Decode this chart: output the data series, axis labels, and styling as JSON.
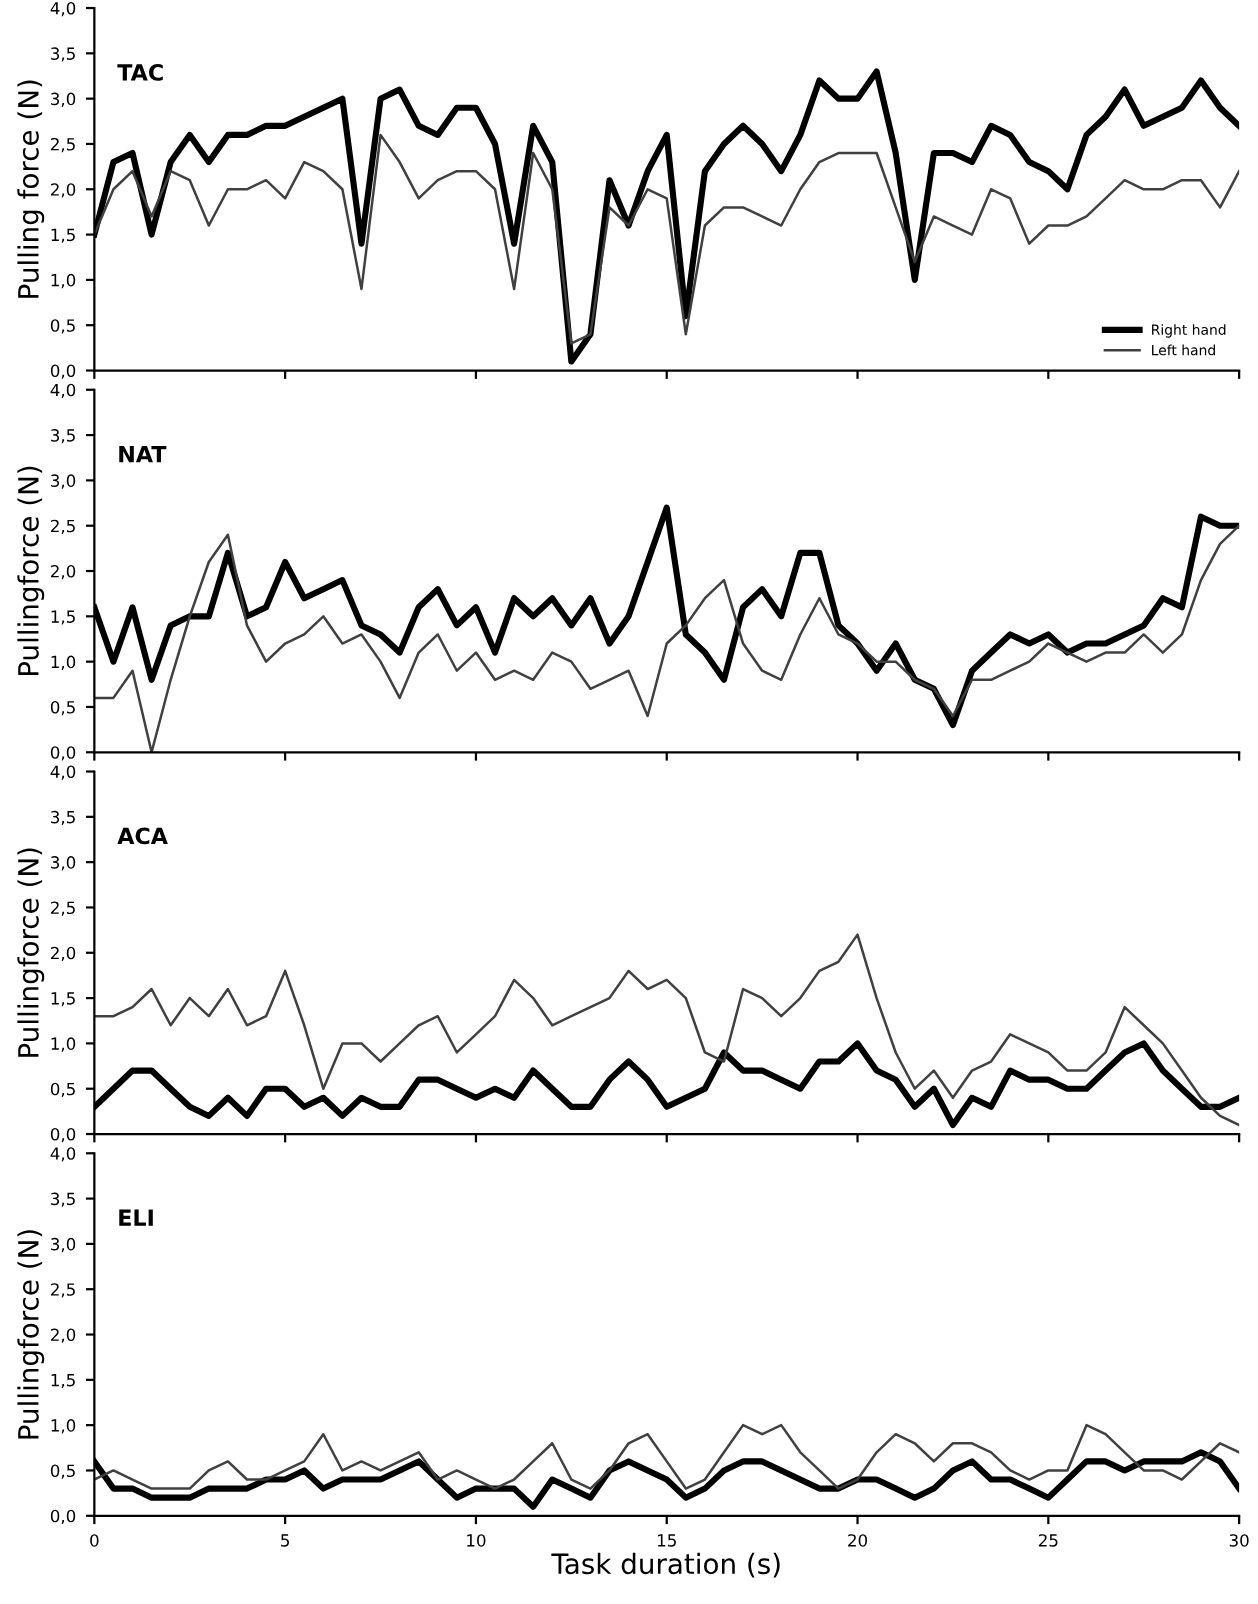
{
  "chart_data": [
    {
      "type": "line",
      "title": "TAC",
      "ylabel": "Pulling force (N)",
      "xlim": [
        0,
        30
      ],
      "xticks": [
        0,
        5,
        10,
        15,
        20,
        25,
        30
      ],
      "ylim": [
        0,
        4
      ],
      "yticks": [
        {
          "value": 0,
          "label": "0,0"
        },
        {
          "value": 0.5,
          "label": "0,5"
        },
        {
          "value": 1,
          "label": "1,0"
        },
        {
          "value": 1.5,
          "label": "1,5"
        },
        {
          "value": 2,
          "label": "2,0"
        },
        {
          "value": 2.5,
          "label": "2,5"
        },
        {
          "value": 3,
          "label": "3,0"
        },
        {
          "value": 3.5,
          "label": "3,5"
        },
        {
          "value": 4,
          "label": "4,0"
        }
      ],
      "tick_labels": "y",
      "legend": "bottom right",
      "grid": false,
      "x": [
        0,
        0.5,
        1,
        1.5,
        2,
        2.5,
        3,
        3.5,
        4,
        4.5,
        5,
        5.5,
        6,
        6.5,
        7,
        7.5,
        8,
        8.5,
        9,
        9.5,
        10,
        10.5,
        11,
        11.5,
        12,
        12.5,
        13,
        13.5,
        14,
        14.5,
        15,
        15.5,
        16,
        16.5,
        17,
        17.5,
        18,
        18.5,
        19,
        19.5,
        20,
        20.5,
        21,
        21.5,
        22,
        22.5,
        23,
        23.5,
        24,
        24.5,
        25,
        25.5,
        26,
        26.5,
        27,
        27.5,
        28,
        28.5,
        29,
        29.5,
        30
      ],
      "series": [
        {
          "name": "Right hand",
          "color": "#000000",
          "values": [
            1.5,
            2.3,
            2.4,
            1.5,
            2.3,
            2.6,
            2.3,
            2.6,
            2.6,
            2.7,
            2.7,
            2.8,
            2.9,
            3.0,
            1.4,
            3.0,
            3.1,
            2.7,
            2.6,
            2.9,
            2.9,
            2.5,
            1.4,
            2.7,
            2.3,
            0.1,
            0.4,
            2.1,
            1.6,
            2.2,
            2.6,
            0.6,
            2.2,
            2.5,
            2.7,
            2.5,
            2.2,
            2.6,
            3.2,
            3.0,
            3.0,
            3.3,
            2.4,
            1.0,
            2.4,
            2.4,
            2.3,
            2.7,
            2.6,
            2.3,
            2.2,
            2.0,
            2.6,
            2.8,
            3.1,
            2.7,
            2.8,
            2.9,
            3.2,
            2.9,
            2.7
          ]
        },
        {
          "name": "Left hand",
          "color": "#404040",
          "values": [
            1.5,
            2.0,
            2.2,
            1.7,
            2.2,
            2.1,
            1.6,
            2.0,
            2.0,
            2.1,
            1.9,
            2.3,
            2.2,
            2.0,
            0.9,
            2.6,
            2.3,
            1.9,
            2.1,
            2.2,
            2.2,
            2.0,
            0.9,
            2.4,
            2.0,
            0.3,
            0.4,
            1.8,
            1.6,
            2.0,
            1.9,
            0.4,
            1.6,
            1.8,
            1.8,
            1.7,
            1.6,
            2.0,
            2.3,
            2.4,
            2.4,
            2.4,
            1.8,
            1.2,
            1.7,
            1.6,
            1.5,
            2.0,
            1.9,
            1.4,
            1.6,
            1.6,
            1.7,
            1.9,
            2.1,
            2.0,
            2.0,
            2.1,
            2.1,
            1.8,
            2.2
          ]
        }
      ]
    },
    {
      "type": "line",
      "title": "NAT",
      "ylabel": "Pullingforce (N)",
      "xlim": [
        0,
        30
      ],
      "xticks": [
        0,
        5,
        10,
        15,
        20,
        25,
        30
      ],
      "ylim": [
        0,
        4
      ],
      "yticks": [
        {
          "value": 0,
          "label": "0,0"
        },
        {
          "value": 0.5,
          "label": "0,5"
        },
        {
          "value": 1,
          "label": "1,0"
        },
        {
          "value": 1.5,
          "label": "1,5"
        },
        {
          "value": 2,
          "label": "2,0"
        },
        {
          "value": 2.5,
          "label": "2,5"
        },
        {
          "value": 3,
          "label": "3,0"
        },
        {
          "value": 3.5,
          "label": "3,5"
        },
        {
          "value": 4,
          "label": "4,0"
        }
      ],
      "tick_labels": "y",
      "grid": false,
      "x": [
        0,
        0.5,
        1,
        1.5,
        2,
        2.5,
        3,
        3.5,
        4,
        4.5,
        5,
        5.5,
        6,
        6.5,
        7,
        7.5,
        8,
        8.5,
        9,
        9.5,
        10,
        10.5,
        11,
        11.5,
        12,
        12.5,
        13,
        13.5,
        14,
        14.5,
        15,
        15.5,
        16,
        16.5,
        17,
        17.5,
        18,
        18.5,
        19,
        19.5,
        20,
        20.5,
        21,
        21.5,
        22,
        22.5,
        23,
        23.5,
        24,
        24.5,
        25,
        25.5,
        26,
        26.5,
        27,
        27.5,
        28,
        28.5,
        29,
        29.5,
        30
      ],
      "series": [
        {
          "color": "#000000",
          "values": [
            1.6,
            1.0,
            1.6,
            0.8,
            1.4,
            1.5,
            1.5,
            2.2,
            1.5,
            1.6,
            2.1,
            1.7,
            1.8,
            1.9,
            1.4,
            1.3,
            1.1,
            1.6,
            1.8,
            1.4,
            1.6,
            1.1,
            1.7,
            1.5,
            1.7,
            1.4,
            1.7,
            1.2,
            1.5,
            2.1,
            2.7,
            1.3,
            1.1,
            0.8,
            1.6,
            1.8,
            1.5,
            2.2,
            2.2,
            1.4,
            1.2,
            0.9,
            1.2,
            0.8,
            0.7,
            0.3,
            0.9,
            1.1,
            1.3,
            1.2,
            1.3,
            1.1,
            1.2,
            1.2,
            1.3,
            1.4,
            1.7,
            1.6,
            2.6,
            2.5,
            2.5
          ]
        },
        {
          "color": "#404040",
          "values": [
            0.6,
            0.6,
            0.9,
            0.0,
            0.8,
            1.5,
            2.1,
            2.4,
            1.4,
            1.0,
            1.2,
            1.3,
            1.5,
            1.2,
            1.3,
            1.0,
            0.6,
            1.1,
            1.3,
            0.9,
            1.1,
            0.8,
            0.9,
            0.8,
            1.1,
            1.0,
            0.7,
            0.8,
            0.9,
            0.4,
            1.2,
            1.4,
            1.7,
            1.9,
            1.2,
            0.9,
            0.8,
            1.3,
            1.7,
            1.3,
            1.2,
            1.0,
            1.0,
            0.8,
            0.7,
            0.4,
            0.8,
            0.8,
            0.9,
            1.0,
            1.2,
            1.1,
            1.0,
            1.1,
            1.1,
            1.3,
            1.1,
            1.3,
            1.9,
            2.3,
            2.5
          ]
        }
      ]
    },
    {
      "type": "line",
      "title": "ACA",
      "ylabel": "Pullingforce (N)",
      "xlim": [
        0,
        30
      ],
      "xticks": [
        0,
        5,
        10,
        15,
        20,
        25,
        30
      ],
      "ylim": [
        0,
        4
      ],
      "yticks": [
        {
          "value": 0,
          "label": "0,0"
        },
        {
          "value": 0.5,
          "label": "0,5"
        },
        {
          "value": 1,
          "label": "1,0"
        },
        {
          "value": 1.5,
          "label": "1,5"
        },
        {
          "value": 2,
          "label": "2,0"
        },
        {
          "value": 2.5,
          "label": "2,5"
        },
        {
          "value": 3,
          "label": "3,0"
        },
        {
          "value": 3.5,
          "label": "3,5"
        },
        {
          "value": 4,
          "label": "4,0"
        }
      ],
      "tick_labels": "y",
      "grid": false,
      "x": [
        0,
        0.5,
        1,
        1.5,
        2,
        2.5,
        3,
        3.5,
        4,
        4.5,
        5,
        5.5,
        6,
        6.5,
        7,
        7.5,
        8,
        8.5,
        9,
        9.5,
        10,
        10.5,
        11,
        11.5,
        12,
        12.5,
        13,
        13.5,
        14,
        14.5,
        15,
        15.5,
        16,
        16.5,
        17,
        17.5,
        18,
        18.5,
        19,
        19.5,
        20,
        20.5,
        21,
        21.5,
        22,
        22.5,
        23,
        23.5,
        24,
        24.5,
        25,
        25.5,
        26,
        26.5,
        27,
        27.5,
        28,
        28.5,
        29,
        29.5,
        30
      ],
      "series": [
        {
          "color": "#000000",
          "values": [
            0.3,
            0.5,
            0.7,
            0.7,
            0.5,
            0.3,
            0.2,
            0.4,
            0.2,
            0.5,
            0.5,
            0.3,
            0.4,
            0.2,
            0.4,
            0.3,
            0.3,
            0.6,
            0.6,
            0.5,
            0.4,
            0.5,
            0.4,
            0.7,
            0.5,
            0.3,
            0.3,
            0.6,
            0.8,
            0.6,
            0.3,
            0.4,
            0.5,
            0.9,
            0.7,
            0.7,
            0.6,
            0.5,
            0.8,
            0.8,
            1.0,
            0.7,
            0.6,
            0.3,
            0.5,
            0.1,
            0.4,
            0.3,
            0.7,
            0.6,
            0.6,
            0.5,
            0.5,
            0.7,
            0.9,
            1.0,
            0.7,
            0.5,
            0.3,
            0.3,
            0.4
          ]
        },
        {
          "color": "#404040",
          "values": [
            1.3,
            1.3,
            1.4,
            1.6,
            1.2,
            1.5,
            1.3,
            1.6,
            1.2,
            1.3,
            1.8,
            1.2,
            0.5,
            1.0,
            1.0,
            0.8,
            1.0,
            1.2,
            1.3,
            0.9,
            1.1,
            1.3,
            1.7,
            1.5,
            1.2,
            1.3,
            1.4,
            1.5,
            1.8,
            1.6,
            1.7,
            1.5,
            0.9,
            0.8,
            1.6,
            1.5,
            1.3,
            1.5,
            1.8,
            1.9,
            2.2,
            1.5,
            0.9,
            0.5,
            0.7,
            0.4,
            0.7,
            0.8,
            1.1,
            1.0,
            0.9,
            0.7,
            0.7,
            0.9,
            1.4,
            1.2,
            1.0,
            0.7,
            0.4,
            0.2,
            0.1
          ]
        }
      ]
    },
    {
      "type": "line",
      "title": "ELI",
      "ylabel": "Pullingforce (N)",
      "xlabel": "Task duration (s)",
      "xlim": [
        0,
        30
      ],
      "xticks": [
        0,
        5,
        10,
        15,
        20,
        25,
        30
      ],
      "ylim": [
        0,
        4
      ],
      "yticks": [
        {
          "value": 0,
          "label": "0,0"
        },
        {
          "value": 0.5,
          "label": "0,5"
        },
        {
          "value": 1,
          "label": "1,0"
        },
        {
          "value": 1.5,
          "label": "1,5"
        },
        {
          "value": 2,
          "label": "2,0"
        },
        {
          "value": 2.5,
          "label": "2,5"
        },
        {
          "value": 3,
          "label": "3,0"
        },
        {
          "value": 3.5,
          "label": "3,5"
        },
        {
          "value": 4,
          "label": "4,0"
        }
      ],
      "grid": false,
      "x": [
        0,
        0.5,
        1,
        1.5,
        2,
        2.5,
        3,
        3.5,
        4,
        4.5,
        5,
        5.5,
        6,
        6.5,
        7,
        7.5,
        8,
        8.5,
        9,
        9.5,
        10,
        10.5,
        11,
        11.5,
        12,
        12.5,
        13,
        13.5,
        14,
        14.5,
        15,
        15.5,
        16,
        16.5,
        17,
        17.5,
        18,
        18.5,
        19,
        19.5,
        20,
        20.5,
        21,
        21.5,
        22,
        22.5,
        23,
        23.5,
        24,
        24.5,
        25,
        25.5,
        26,
        26.5,
        27,
        27.5,
        28,
        28.5,
        29,
        29.5,
        30
      ],
      "series": [
        {
          "color": "#000000",
          "values": [
            0.6,
            0.3,
            0.3,
            0.2,
            0.2,
            0.2,
            0.3,
            0.3,
            0.3,
            0.4,
            0.4,
            0.5,
            0.3,
            0.4,
            0.4,
            0.4,
            0.5,
            0.6,
            0.4,
            0.2,
            0.3,
            0.3,
            0.3,
            0.1,
            0.4,
            0.3,
            0.2,
            0.5,
            0.6,
            0.5,
            0.4,
            0.2,
            0.3,
            0.5,
            0.6,
            0.6,
            0.5,
            0.4,
            0.3,
            0.3,
            0.4,
            0.4,
            0.3,
            0.2,
            0.3,
            0.5,
            0.6,
            0.4,
            0.4,
            0.3,
            0.2,
            0.4,
            0.6,
            0.6,
            0.5,
            0.6,
            0.6,
            0.6,
            0.7,
            0.6,
            0.3
          ]
        },
        {
          "color": "#404040",
          "values": [
            0.4,
            0.5,
            0.4,
            0.3,
            0.3,
            0.3,
            0.5,
            0.6,
            0.4,
            0.4,
            0.5,
            0.6,
            0.9,
            0.5,
            0.6,
            0.5,
            0.6,
            0.7,
            0.4,
            0.5,
            0.4,
            0.3,
            0.4,
            0.6,
            0.8,
            0.4,
            0.3,
            0.5,
            0.8,
            0.9,
            0.6,
            0.3,
            0.4,
            0.7,
            1.0,
            0.9,
            1.0,
            0.7,
            0.5,
            0.3,
            0.4,
            0.7,
            0.9,
            0.8,
            0.6,
            0.8,
            0.8,
            0.7,
            0.5,
            0.4,
            0.5,
            0.5,
            1.0,
            0.9,
            0.7,
            0.5,
            0.5,
            0.4,
            0.6,
            0.8,
            0.7
          ]
        }
      ]
    }
  ]
}
